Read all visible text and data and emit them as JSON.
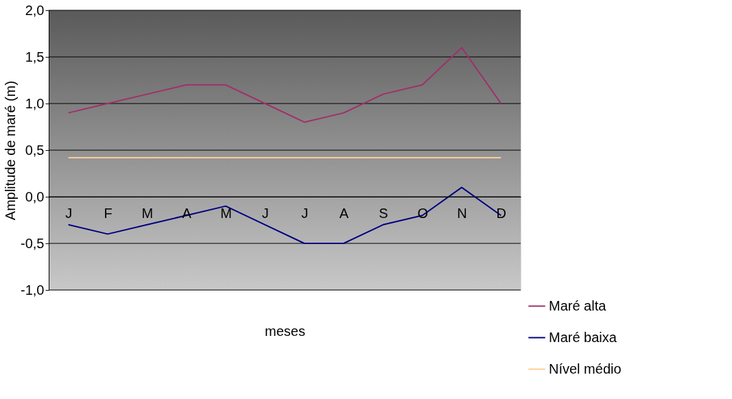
{
  "chart_data": {
    "type": "line",
    "ylabel": "Amplitude de maré (m)",
    "xlabel": "meses",
    "categories": [
      "J",
      "F",
      "M",
      "A",
      "M",
      "J",
      "J",
      "A",
      "S",
      "O",
      "N",
      "D"
    ],
    "series": [
      {
        "name": "Maré alta",
        "color": "#a0306a",
        "values": [
          0.9,
          1.0,
          1.1,
          1.2,
          1.2,
          1.0,
          0.8,
          0.9,
          1.1,
          1.2,
          1.6,
          1.0
        ]
      },
      {
        "name": "Maré baixa",
        "color": "#000080",
        "values": [
          -0.3,
          -0.4,
          -0.3,
          -0.2,
          -0.1,
          -0.3,
          -0.5,
          -0.5,
          -0.3,
          -0.2,
          0.1,
          -0.2
        ]
      },
      {
        "name": "Nível médio",
        "color": "#ffcc99",
        "values": [
          0.42,
          0.42,
          0.42,
          0.42,
          0.42,
          0.42,
          0.42,
          0.42,
          0.42,
          0.42,
          0.42,
          0.42
        ]
      }
    ],
    "ylim": [
      -1.0,
      2.0
    ],
    "yticks": [
      {
        "value": -1.0,
        "label": "-1,0"
      },
      {
        "value": -0.5,
        "label": "-0,5"
      },
      {
        "value": 0.0,
        "label": "0,0"
      },
      {
        "value": 0.5,
        "label": "0,5"
      },
      {
        "value": 1.0,
        "label": "1,0"
      },
      {
        "value": 1.5,
        "label": "1,5"
      },
      {
        "value": 2.0,
        "label": "2,0"
      }
    ],
    "grid": "y",
    "legend": "bottom right",
    "marker": "none",
    "line_style": "solid"
  }
}
